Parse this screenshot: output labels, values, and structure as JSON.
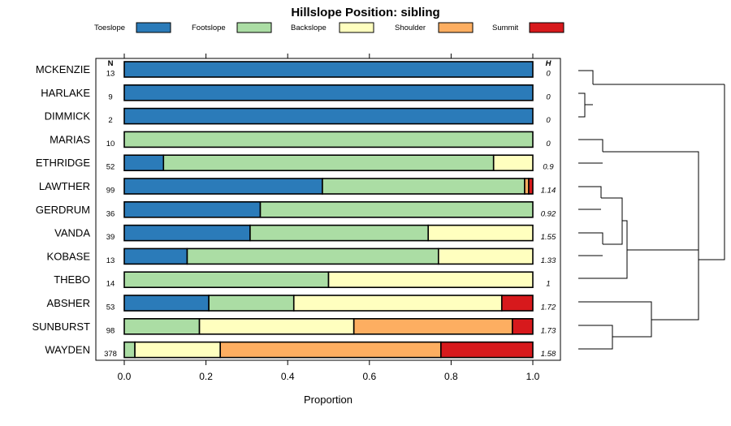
{
  "chart_data": {
    "type": "bar",
    "orientation": "horizontal",
    "stacked": true,
    "title": "Hillslope Position: sibling",
    "xlabel": "Proportion",
    "xlim": [
      0,
      1
    ],
    "x_ticks": [
      "0.0",
      "0.2",
      "0.4",
      "0.6",
      "0.8",
      "1.0"
    ],
    "legend": [
      {
        "name": "Toeslope",
        "color": "#2b7bb9"
      },
      {
        "name": "Footslope",
        "color": "#abdda4"
      },
      {
        "name": "Backslope",
        "color": "#ffffbf"
      },
      {
        "name": "Shoulder",
        "color": "#fdae61"
      },
      {
        "name": "Summit",
        "color": "#d7191c"
      }
    ],
    "count_header": "N",
    "h_header": "H",
    "categories": [
      "MCKENZIE",
      "HARLAKE",
      "DIMMICK",
      "MARIAS",
      "ETHRIDGE",
      "LAWTHER",
      "GERDRUM",
      "VANDA",
      "KOBASE",
      "THEBO",
      "ABSHER",
      "SUNBURST",
      "WAYDEN"
    ],
    "counts": [
      "13",
      "9",
      "2",
      "10",
      "52",
      "99",
      "36",
      "39",
      "13",
      "14",
      "53",
      "98",
      "378"
    ],
    "h_values": [
      "0",
      "0",
      "0",
      "0",
      "0.9",
      "1.14",
      "0.92",
      "1.55",
      "1.33",
      "1",
      "1.72",
      "1.73",
      "1.58"
    ],
    "series": [
      {
        "name": "Toeslope",
        "values": [
          1.0,
          1.0,
          1.0,
          0.0,
          0.096,
          0.485,
          0.333,
          0.308,
          0.154,
          0.0,
          0.207,
          0.0,
          0.0
        ]
      },
      {
        "name": "Footslope",
        "values": [
          0.0,
          0.0,
          0.0,
          1.0,
          0.808,
          0.495,
          0.667,
          0.436,
          0.615,
          0.5,
          0.208,
          0.184,
          0.026
        ]
      },
      {
        "name": "Backslope",
        "values": [
          0.0,
          0.0,
          0.0,
          0.0,
          0.096,
          0.0,
          0.0,
          0.256,
          0.231,
          0.5,
          0.509,
          0.378,
          0.209
        ]
      },
      {
        "name": "Shoulder",
        "values": [
          0.0,
          0.0,
          0.0,
          0.0,
          0.0,
          0.01,
          0.0,
          0.0,
          0.0,
          0.0,
          0.0,
          0.388,
          0.54
        ]
      },
      {
        "name": "Summit",
        "values": [
          0.0,
          0.0,
          0.0,
          0.0,
          0.0,
          0.01,
          0.0,
          0.0,
          0.0,
          0.0,
          0.076,
          0.05,
          0.225
        ]
      }
    ],
    "dendrogram": "hierarchical clustering of the series (right side)"
  }
}
